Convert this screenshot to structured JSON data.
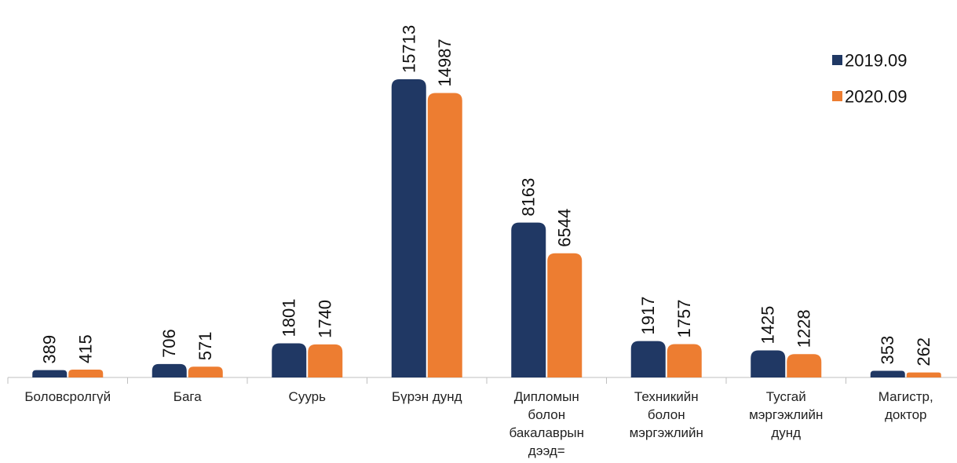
{
  "chart_data": {
    "type": "bar",
    "categories": [
      [
        "Боловсролгүй"
      ],
      [
        "Бага"
      ],
      [
        "Суурь"
      ],
      [
        "Бүрэн дунд"
      ],
      [
        "Дипломын",
        "болон",
        "бакалаврын",
        "дээд="
      ],
      [
        "Техникийн",
        "болон",
        "мэргэжлийн"
      ],
      [
        "Тусгай",
        "мэргэжлийн",
        "дунд"
      ],
      [
        "Магистр,",
        "доктор"
      ]
    ],
    "series": [
      {
        "name": "2019.09",
        "color": "#203864",
        "values": [
          389,
          706,
          1801,
          15713,
          8163,
          1917,
          1425,
          353
        ]
      },
      {
        "name": "2020.09",
        "color": "#ED7D31",
        "values": [
          415,
          571,
          1740,
          14987,
          6544,
          1757,
          1228,
          262
        ]
      }
    ],
    "data_labels": "vertical, above bars",
    "legend_position": "top-right",
    "grid": false
  }
}
